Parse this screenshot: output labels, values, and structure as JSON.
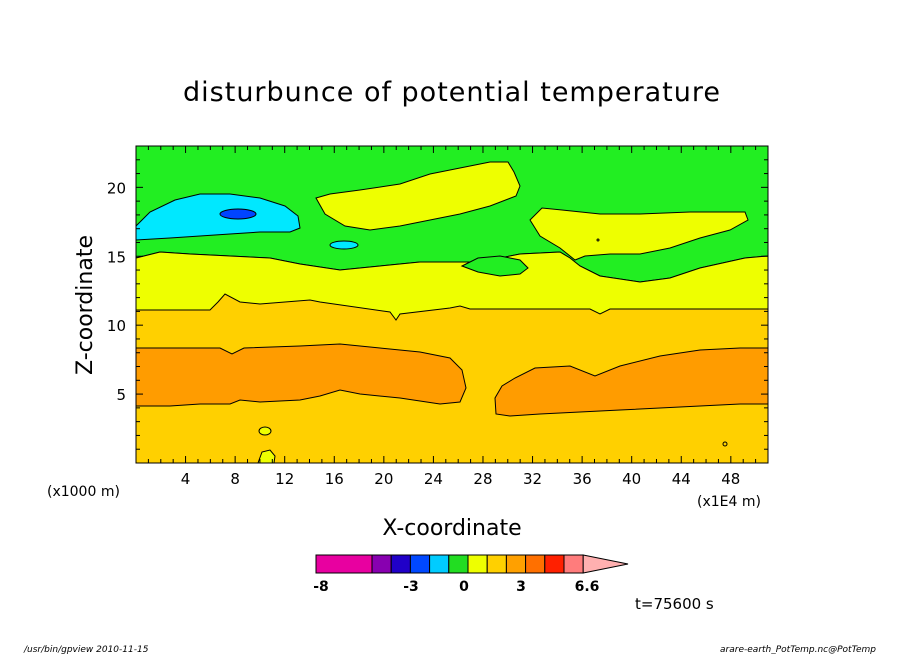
{
  "chart_data": {
    "type": "heatmap",
    "title": "disturbunce of potential temperature",
    "xlabel": "X-coordinate",
    "ylabel": "Z-coordinate",
    "x_unit_label": "(x1000 m)",
    "x_scale_label": "(x1E4 m)",
    "xlim": [
      0,
      51
    ],
    "ylim": [
      0,
      23
    ],
    "x_ticks": [
      4,
      8,
      12,
      16,
      20,
      24,
      28,
      32,
      36,
      40,
      44,
      48
    ],
    "y_ticks": [
      5,
      10,
      15,
      20
    ],
    "time_label": "t=75600 s",
    "colorbar": {
      "tick_labels": [
        "-8",
        "-3",
        "0",
        "3",
        "6.6"
      ],
      "tick_values": [
        -8,
        -3,
        0,
        3,
        6.6
      ],
      "colors": [
        "#e800a0",
        "#e800a0",
        "#8800b0",
        "#2000c8",
        "#0048ff",
        "#00ccff",
        "#22dd22",
        "#eeff00",
        "#ffd000",
        "#ffa000",
        "#ff7000",
        "#ff2000",
        "#ff7c7c",
        "#ffb0b0"
      ]
    },
    "bands": [
      {
        "name": "cyan",
        "color": "#00e8ff"
      },
      {
        "name": "blue",
        "color": "#0044ff"
      },
      {
        "name": "green",
        "color": "#22ee22"
      },
      {
        "name": "yellow",
        "color": "#eeff00"
      },
      {
        "name": "light-orange",
        "color": "#ffd000"
      },
      {
        "name": "orange",
        "color": "#ff9c00"
      }
    ]
  },
  "footer": {
    "left": "/usr/bin/gpview  2010-11-15",
    "right": "arare-earth_PotTemp.nc@PotTemp"
  }
}
